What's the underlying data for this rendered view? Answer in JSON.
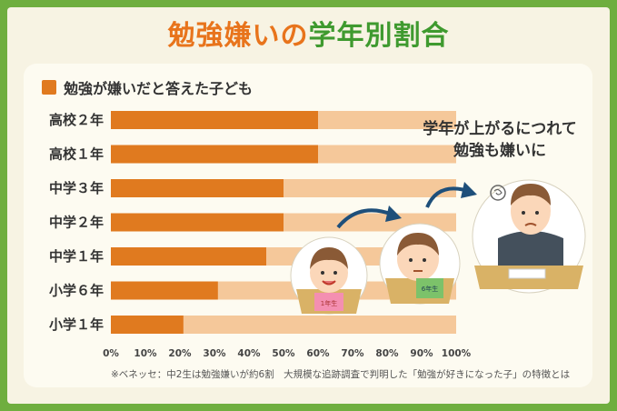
{
  "header": {
    "title_part1": "勉強嫌いの",
    "title_part2": "学年別割合"
  },
  "callout": {
    "line1": "学年が上がるにつれて",
    "line2": "勉強も嫌いに"
  },
  "footnote": "※ベネッセ：中2生は勉強嫌いが約6割　大規模な追跡調査で判明した「勉強が好きになった子」の特徴とは",
  "colors": {
    "bar": "#e07a1f",
    "track": "#f5c89a",
    "title_orange": "#e8741c",
    "title_green": "#3f9a2f",
    "frame": "#6fae3f"
  },
  "illustrations": [
    {
      "icon": "smiling-child-with-book-icon",
      "book_label": "1年生"
    },
    {
      "icon": "thinking-child-with-book-icon",
      "book_label": "6年生"
    },
    {
      "icon": "worried-student-at-desk-icon",
      "book_label": ""
    }
  ],
  "chart_data": {
    "type": "bar",
    "orientation": "horizontal",
    "categories": [
      "高校２年",
      "高校１年",
      "中学３年",
      "中学２年",
      "中学１年",
      "小学６年",
      "小学１年"
    ],
    "series": [
      {
        "name": "勉強が嫌いだと答えた子ども",
        "values": [
          60,
          60,
          50,
          50,
          45,
          31,
          21
        ]
      }
    ],
    "xlim": [
      0,
      100
    ],
    "xticks": [
      "0%",
      "10%",
      "20%",
      "30%",
      "40%",
      "50%",
      "60%",
      "70%",
      "80%",
      "90%",
      "100%"
    ],
    "legend_position": "top-left",
    "grid": false
  }
}
